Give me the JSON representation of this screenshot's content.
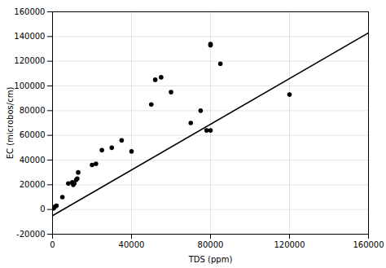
{
  "chart_data": {
    "type": "scatter",
    "x": [
      500,
      1000,
      2000,
      5000,
      8000,
      10000,
      10500,
      11000,
      12000,
      12500,
      13000,
      20000,
      22000,
      25000,
      30000,
      35000,
      40000,
      50000,
      52000,
      55000,
      60000,
      70000,
      75000,
      78000,
      80000,
      80000,
      80000,
      85000,
      120000
    ],
    "values": [
      1000,
      2000,
      3000,
      10000,
      21000,
      22000,
      20000,
      21000,
      24000,
      25000,
      30000,
      36000,
      37000,
      48000,
      50000,
      56000,
      47000,
      85000,
      105000,
      107000,
      95000,
      70000,
      80000,
      64000,
      64000,
      133000,
      134000,
      118000,
      93000
    ],
    "color": "black",
    "marker": "circle",
    "trendline": {
      "x": [
        0,
        160000
      ],
      "values": [
        -5000,
        143000
      ],
      "color": "black"
    },
    "xlabel": "TDS (ppm)",
    "ylabel": "EC (microbos/cm)",
    "xlim": [
      0,
      160000
    ],
    "ylim": [
      -20000,
      160000
    ],
    "xticks": [
      0,
      40000,
      80000,
      120000,
      160000
    ],
    "yticks": [
      -20000,
      0,
      20000,
      40000,
      60000,
      80000,
      100000,
      120000,
      140000,
      160000
    ],
    "grid": true
  }
}
